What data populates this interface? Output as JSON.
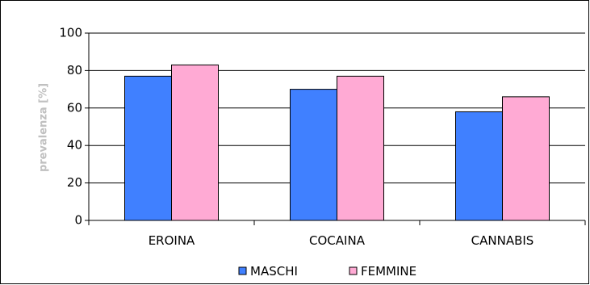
{
  "chart_data": {
    "type": "bar",
    "title": "",
    "xlabel": "",
    "ylabel": "prevalenza [%]",
    "ylim": [
      0,
      100
    ],
    "yticks": [
      0,
      20,
      40,
      60,
      80,
      100
    ],
    "categories": [
      "EROINA",
      "COCAINA",
      "CANNABIS"
    ],
    "series": [
      {
        "name": "MASCHI",
        "color": "#4080ff",
        "values": [
          77,
          70,
          58
        ]
      },
      {
        "name": "FEMMINE",
        "color": "#ffaad4",
        "values": [
          83,
          77,
          66
        ]
      }
    ],
    "grid": true,
    "legend_position": "bottom"
  }
}
